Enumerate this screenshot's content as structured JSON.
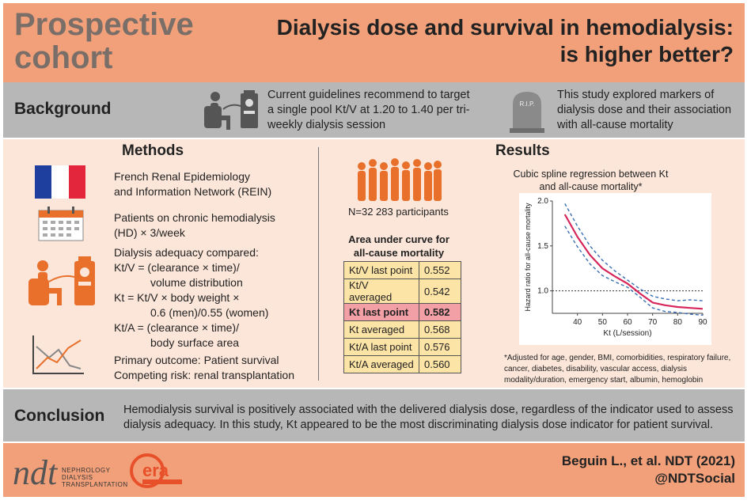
{
  "header": {
    "study_type_line1": "Prospective",
    "study_type_line2": "cohort",
    "title_line1": "Dialysis dose and survival in hemodialysis:",
    "title_line2": "is higher better?"
  },
  "background": {
    "label": "Background",
    "text1": "Current guidelines recommend to target a single pool Kt/V at 1.20 to 1.40 per tri-weekly dialysis session",
    "text2": "This study explored markers of dialysis dose and their association with all-cause mortality",
    "tomb_label": "R.I.P."
  },
  "methods": {
    "title": "Methods",
    "item1": [
      "French Renal Epidemiology",
      "and Information Network (REIN)"
    ],
    "item2": [
      "Patients on chronic hemodialysis",
      "(HD) × 3/week"
    ],
    "item3": [
      "Dialysis adequacy compared:",
      "Kt/V = (clearance × time)/",
      "volume distribution",
      "Kt = Kt/V × body weight ×",
      "0.6 (men)/0.55 (women)",
      "Kt/A = (clearance × time)/",
      "body surface area"
    ],
    "item4": [
      "Primary outcome: Patient survival",
      "Competing risk: renal transplantation"
    ]
  },
  "participants": {
    "label": "N=32 283 participants"
  },
  "auc": {
    "title": "Area under curve for all-cause mortality",
    "rows": [
      {
        "label": "Kt/V last point",
        "value": "0.552"
      },
      {
        "label": "Kt/V averaged",
        "value": "0.542"
      },
      {
        "label": "Kt last point",
        "value": "0.582"
      },
      {
        "label": "Kt averaged",
        "value": "0.568"
      },
      {
        "label": "Kt/A last point",
        "value": "0.576"
      },
      {
        "label": "Kt/A averaged",
        "value": "0.560"
      }
    ]
  },
  "results": {
    "title": "Results",
    "chart_title": "Cubic spline regression between Kt and all-cause mortality*",
    "footnote": "*Adjusted for age, gender, BMI, comorbidities, respiratory failure, cancer, diabetes, disability, vascular access, dialysis modality/duration, emergency start, albumin, hemoglobin"
  },
  "chart_data": {
    "type": "line",
    "xlabel": "Kt (L/session)",
    "ylabel": "Hazard ratio for all-cause mortality",
    "xlim": [
      30,
      90
    ],
    "ylim": [
      0.75,
      2.0
    ],
    "x_ticks": [
      40,
      50,
      60,
      70,
      80,
      90
    ],
    "y_ticks": [
      1.0,
      1.5,
      2.0
    ],
    "reference_line": 1.0,
    "x": [
      35,
      40,
      45,
      50,
      55,
      60,
      65,
      70,
      75,
      80,
      85,
      90
    ],
    "series": [
      {
        "values": [
          1.85,
          1.6,
          1.4,
          1.25,
          1.16,
          1.08,
          0.97,
          0.87,
          0.84,
          0.82,
          0.81,
          0.8
        ]
      },
      {
        "values": [
          1.97,
          1.72,
          1.5,
          1.34,
          1.22,
          1.12,
          1.02,
          0.94,
          0.91,
          0.89,
          0.9,
          0.89
        ]
      },
      {
        "values": [
          1.72,
          1.49,
          1.3,
          1.17,
          1.1,
          1.04,
          0.93,
          0.81,
          0.77,
          0.76,
          0.74,
          0.73
        ]
      }
    ],
    "colors": [
      "#d6265a",
      "#3a6fb5",
      "#3a6fb5"
    ]
  },
  "conclusion": {
    "label": "Conclusion",
    "text": "Hemodialysis survival is positively associated with the delivered dialysis dose, regardless of the indicator used to assess dialysis adequacy. In this study, Kt appeared to be the most discriminating dialysis dose indicator for patient survival."
  },
  "footer": {
    "citation": "Beguin L., et al. NDT (2021)",
    "social": "@NDTSocial",
    "ndt_mark": "ndt",
    "ndt_line1": "NEPHROLOGY",
    "ndt_line2": "DIALYSIS",
    "ndt_line3": "TRANSPLANTATION",
    "era_mark": "era"
  },
  "colors": {
    "header": "#f2a07a",
    "band": "#b7b7b7",
    "panel": "#fce6d9",
    "accent": "#e8702a",
    "highlight": "#f2a0a6",
    "table": "#fce3a6"
  }
}
